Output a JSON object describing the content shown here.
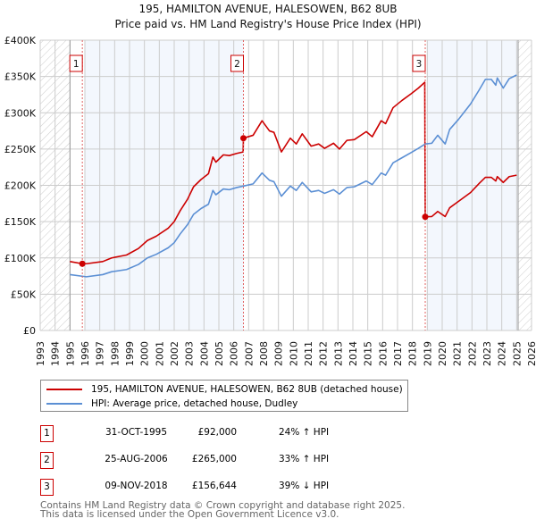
{
  "chart_data": {
    "type": "line",
    "title": "195, HAMILTON AVENUE, HALESOWEN, B62 8UB",
    "subtitle": "Price paid vs. HM Land Registry's House Price Index (HPI)",
    "xlim": [
      1993,
      2026
    ],
    "ylim": [
      0,
      400000
    ],
    "x_ticks": [
      "1993",
      "1994",
      "1995",
      "1996",
      "1997",
      "1998",
      "1999",
      "2000",
      "2001",
      "2002",
      "2003",
      "2004",
      "2005",
      "2006",
      "2007",
      "2008",
      "2009",
      "2010",
      "2011",
      "2012",
      "2013",
      "2014",
      "2015",
      "2016",
      "2017",
      "2018",
      "2019",
      "2020",
      "2021",
      "2022",
      "2023",
      "2024",
      "2025",
      "2026"
    ],
    "y_ticks": [
      {
        "v": 0,
        "label": "£0"
      },
      {
        "v": 50000,
        "label": "£50K"
      },
      {
        "v": 100000,
        "label": "£100K"
      },
      {
        "v": 150000,
        "label": "£150K"
      },
      {
        "v": 200000,
        "label": "£200K"
      },
      {
        "v": 250000,
        "label": "£250K"
      },
      {
        "v": 300000,
        "label": "£300K"
      },
      {
        "v": 350000,
        "label": "£350K"
      },
      {
        "v": 400000,
        "label": "£400K"
      }
    ],
    "grid": true,
    "hatched_ranges": [
      [
        1993,
        1995.0
      ],
      [
        2025.1,
        2026
      ]
    ],
    "shaded_ranges": [
      [
        1996.0,
        2006.65
      ],
      [
        2019.0,
        2025.1
      ]
    ],
    "series": [
      {
        "name": "195, HAMILTON AVENUE, HALESOWEN, B62 8UB (detached house)",
        "color": "#cc0000",
        "x": [
          1995.0,
          1995.83,
          1996.1,
          1997.2,
          1997.8,
          1998.8,
          1999.6,
          2000.2,
          2000.8,
          2001.6,
          2002.0,
          2002.4,
          2002.9,
          2003.3,
          2003.8,
          2004.3,
          2004.6,
          2004.8,
          2005.3,
          2005.7,
          2006.2,
          2006.63,
          2006.65,
          2007.3,
          2007.9,
          2008.4,
          2008.7,
          2009.2,
          2009.8,
          2010.2,
          2010.6,
          2011.2,
          2011.7,
          2012.1,
          2012.7,
          2013.1,
          2013.6,
          2014.1,
          2014.9,
          2015.3,
          2015.9,
          2016.2,
          2016.7,
          2017.3,
          2017.9,
          2018.4,
          2018.83,
          2018.86,
          2019.3,
          2019.7,
          2020.2,
          2020.5,
          2021.1,
          2021.9,
          2022.5,
          2022.9,
          2023.3,
          2023.6,
          2023.7,
          2024.1,
          2024.5,
          2025.0
        ],
        "y": [
          95000,
          92000,
          92000,
          95000,
          100000,
          104000,
          113000,
          124000,
          130000,
          141000,
          150000,
          165000,
          181000,
          198000,
          208000,
          216000,
          239000,
          232000,
          242000,
          241000,
          244000,
          246000,
          265000,
          269000,
          289000,
          275000,
          273000,
          246000,
          265000,
          257000,
          271000,
          254000,
          257000,
          251000,
          258000,
          250000,
          262000,
          263000,
          274000,
          267000,
          289000,
          285000,
          307000,
          317000,
          326000,
          334000,
          342000,
          156644,
          157000,
          164000,
          157000,
          169000,
          178000,
          190000,
          203000,
          211000,
          211000,
          206000,
          212000,
          204000,
          212000,
          214000
        ]
      },
      {
        "name": "HPI: Average price, detached house, Dudley",
        "color": "#5b8fd4",
        "x": [
          1995.0,
          1996.1,
          1997.2,
          1997.8,
          1998.8,
          1999.6,
          2000.2,
          2000.8,
          2001.6,
          2002.0,
          2002.4,
          2002.9,
          2003.3,
          2003.8,
          2004.3,
          2004.6,
          2004.8,
          2005.3,
          2005.7,
          2006.2,
          2006.65,
          2007.3,
          2007.9,
          2008.4,
          2008.7,
          2009.2,
          2009.8,
          2010.2,
          2010.6,
          2011.2,
          2011.7,
          2012.1,
          2012.7,
          2013.1,
          2013.6,
          2014.1,
          2014.9,
          2015.3,
          2015.9,
          2016.2,
          2016.7,
          2017.3,
          2017.9,
          2018.4,
          2018.86,
          2019.3,
          2019.7,
          2020.2,
          2020.5,
          2021.1,
          2021.9,
          2022.5,
          2022.9,
          2023.3,
          2023.6,
          2023.7,
          2024.1,
          2024.5,
          2025.0
        ],
        "y": [
          77000,
          74000,
          77000,
          81000,
          84000,
          91000,
          100000,
          105000,
          114000,
          121000,
          133000,
          146000,
          160000,
          168000,
          174000,
          193000,
          187000,
          195000,
          194000,
          197000,
          199000,
          202000,
          217000,
          207000,
          205000,
          185000,
          199000,
          193000,
          204000,
          191000,
          193000,
          189000,
          194000,
          188000,
          197000,
          198000,
          206000,
          201000,
          217000,
          214000,
          231000,
          238000,
          245000,
          251000,
          257000,
          258000,
          269000,
          257000,
          277000,
          291000,
          312000,
          332000,
          346000,
          346000,
          338000,
          348000,
          334000,
          347000,
          352000
        ]
      }
    ],
    "annotations": [
      {
        "label": "1",
        "x": 1995.83,
        "y": 92000
      },
      {
        "label": "2",
        "x": 2006.65,
        "y": 265000
      },
      {
        "label": "3",
        "x": 2018.86,
        "y": 156644
      }
    ]
  },
  "legend": {
    "property": "195, HAMILTON AVENUE, HALESOWEN, B62 8UB (detached house)",
    "hpi": "HPI: Average price, detached house, Dudley"
  },
  "transactions": [
    {
      "num": "1",
      "date": "31-OCT-1995",
      "price": "£92,000",
      "hpi": "24% ↑ HPI"
    },
    {
      "num": "2",
      "date": "25-AUG-2006",
      "price": "£265,000",
      "hpi": "33% ↑ HPI"
    },
    {
      "num": "3",
      "date": "09-NOV-2018",
      "price": "£156,644",
      "hpi": "39% ↓ HPI"
    }
  ],
  "footer": {
    "line1": "Contains HM Land Registry data © Crown copyright and database right 2025.",
    "line2": "This data is licensed under the Open Government Licence v3.0."
  }
}
